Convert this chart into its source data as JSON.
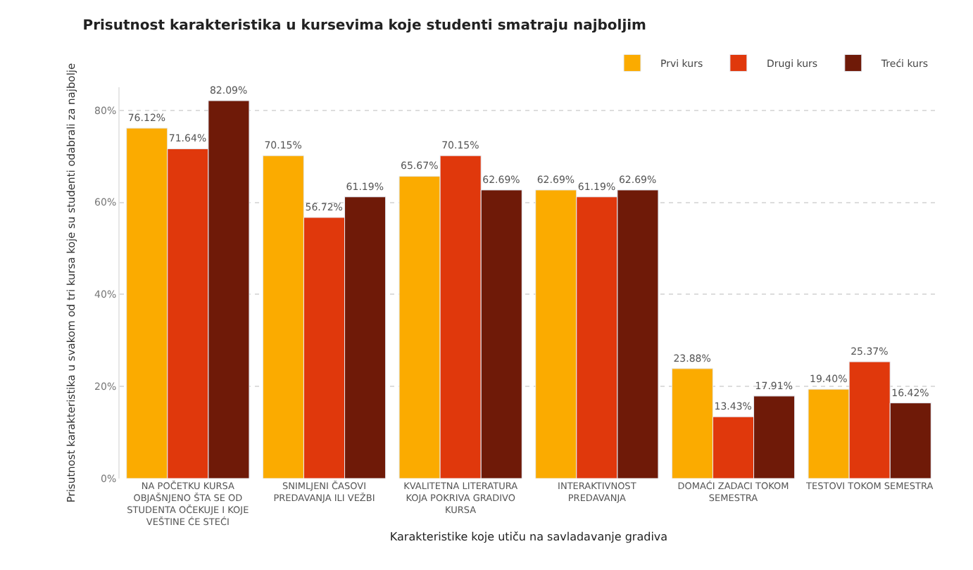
{
  "chart_data": {
    "type": "bar",
    "title": "Prisutnost karakteristika u kursevima koje studenti smatraju najboljim",
    "xlabel": "Karakteristike koje utiču na savladavanje gradiva",
    "ylabel": "Prisutnost karakteristika u svakom od tri kursa koje su studenti odabrali za najbolje",
    "categories": [
      "NA POČETKU KURSA OBJAŠNJENO ŠTA SE OD STUDENTA OČEKUJE I KOJE VEŠTINE ĆE STEĆI",
      "SNIMLJENI ČASOVI PREDAVANJA ILI VEŽBI",
      "KVALITETNA LITERATURA KOJA POKRIVA GRADIVO KURSA",
      "INTERAKTIVNOST PREDAVANJA",
      "DOMAĆI ZADACI TOKOM SEMESTRA",
      "TESTOVI TOKOM SEMESTRA"
    ],
    "series": [
      {
        "name": "Prvi kurs",
        "color": "#fbab00",
        "values": [
          76.12,
          70.15,
          65.67,
          62.69,
          23.88,
          19.4
        ],
        "value_labels": [
          "76.12%",
          "70.15%",
          "65.67%",
          "62.69%",
          "23.88%",
          "19.40%"
        ]
      },
      {
        "name": "Drugi kurs",
        "color": "#e0380c",
        "values": [
          71.64,
          56.72,
          70.15,
          61.19,
          13.43,
          25.37
        ],
        "value_labels": [
          "71.64%",
          "56.72%",
          "70.15%",
          "61.19%",
          "13.43%",
          "25.37%"
        ]
      },
      {
        "name": "Treći kurs",
        "color": "#6f1a08",
        "values": [
          82.09,
          61.19,
          62.69,
          62.69,
          17.91,
          16.42
        ],
        "value_labels": [
          "82.09%",
          "61.19%",
          "62.69%",
          "62.69%",
          "17.91%",
          "16.42%"
        ]
      }
    ],
    "ylim": [
      0,
      85
    ],
    "yticks": [
      {
        "value": 0,
        "label": "0%"
      },
      {
        "value": 20,
        "label": "20%"
      },
      {
        "value": 40,
        "label": "40%"
      },
      {
        "value": 60,
        "label": "60%"
      },
      {
        "value": 80,
        "label": "80%"
      }
    ],
    "grid": "y",
    "legend": "top right"
  }
}
